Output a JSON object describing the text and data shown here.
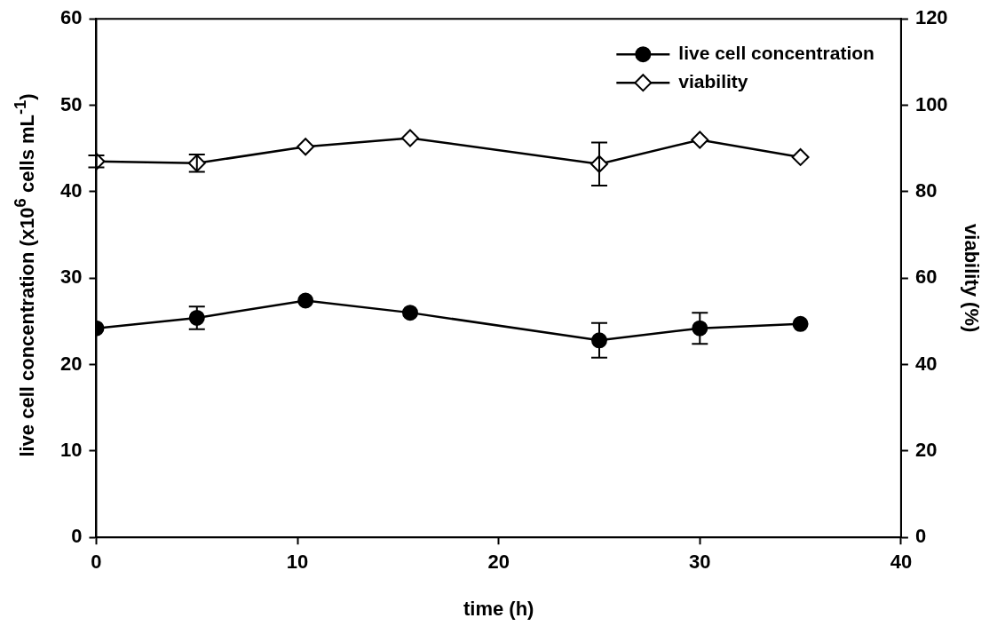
{
  "chart_data": {
    "type": "line",
    "xlabel": "time (h)",
    "ylabel": "live cell concentration (x10$^{6}$ cells mL$^{-1}$)",
    "y2label": "viability (%)",
    "x": [
      0,
      5,
      10.4,
      15.6,
      25,
      30,
      35
    ],
    "series": [
      {
        "name": "live cell concentration",
        "color": "#000000",
        "marker": "circle",
        "values": [
          24.2,
          25.4,
          27.4,
          26,
          22.8,
          24.2,
          24.7
        ],
        "errors": [
          null,
          1.3,
          null,
          null,
          2,
          1.8,
          null
        ]
      },
      {
        "name": "viability",
        "color": "#000000",
        "marker": "diamond",
        "axis": "y2",
        "values": [
          87,
          86.6,
          90.4,
          92.4,
          86.4,
          92,
          88
        ],
        "errors": [
          1.4,
          2,
          null,
          null,
          5,
          null,
          null
        ]
      }
    ],
    "xlim": [
      0,
      40
    ],
    "xticks": [
      0,
      10,
      20,
      30,
      40
    ],
    "ylim": [
      0,
      60
    ],
    "yticks": [
      0,
      10,
      20,
      30,
      40,
      50,
      60
    ],
    "y2lim": [
      0,
      120
    ],
    "y2ticks": [
      0,
      20,
      40,
      60,
      80,
      100,
      120
    ],
    "grid": false,
    "legend": "top right"
  }
}
